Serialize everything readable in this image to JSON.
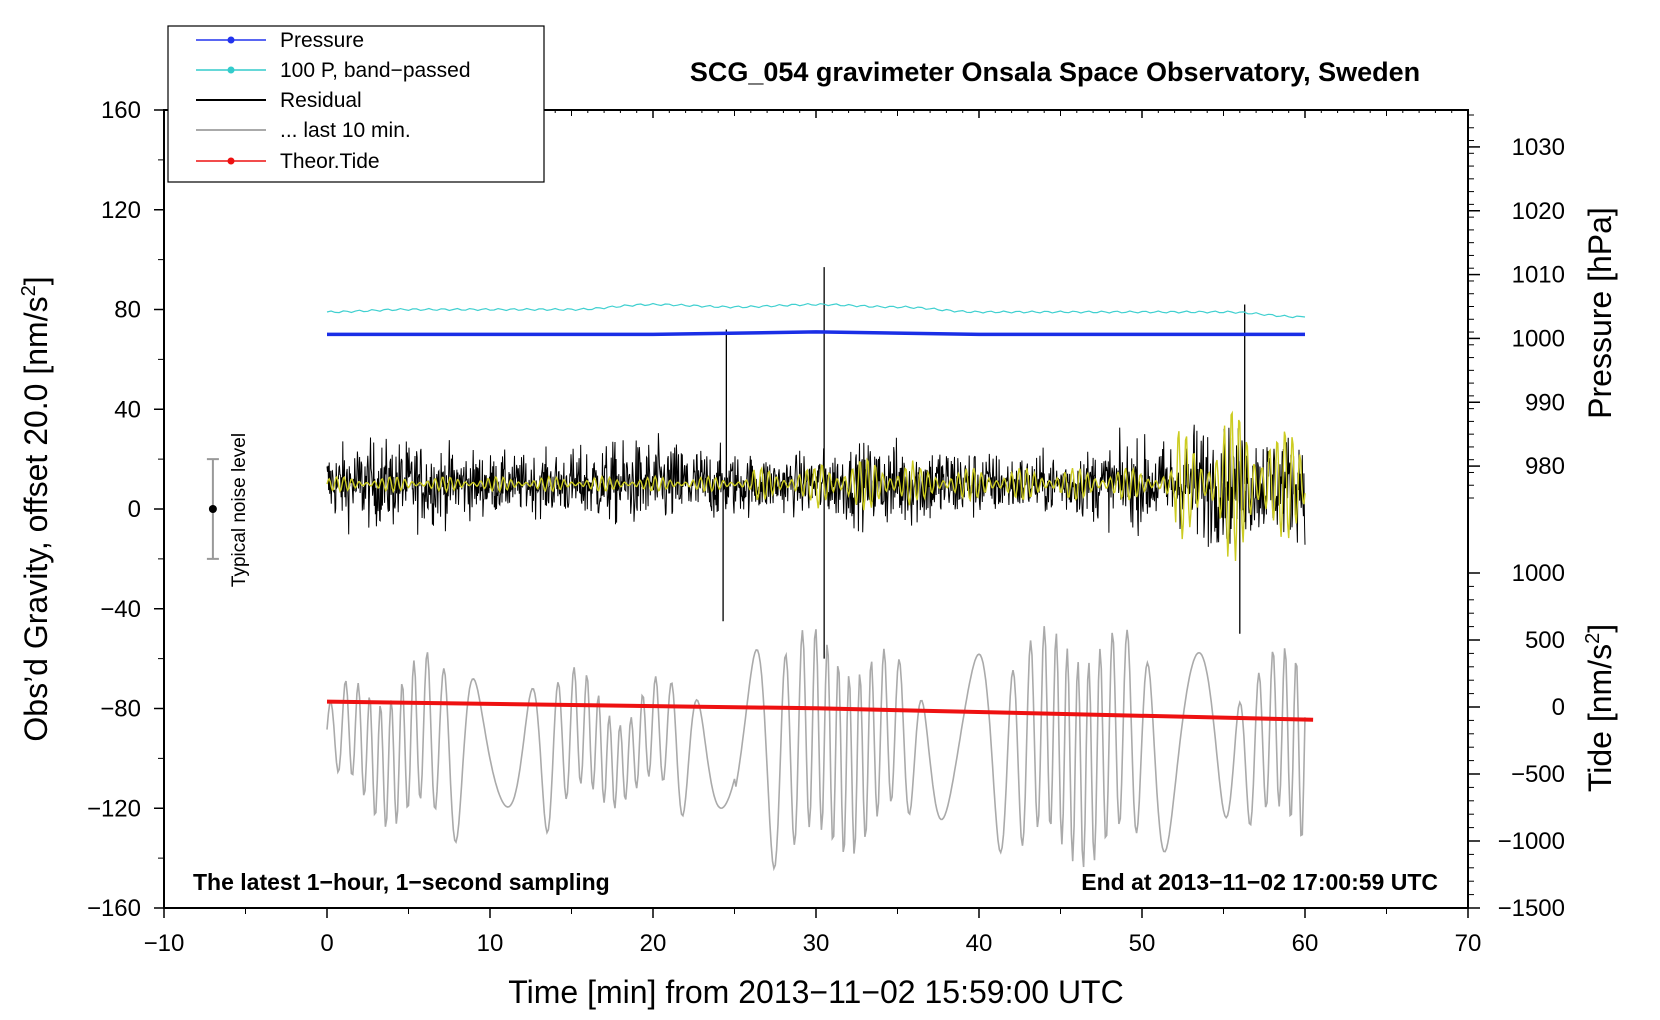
{
  "chart_data": {
    "type": "line",
    "title": "SCG_054 gravimeter Onsala Space Observatory, Sweden",
    "xlabel": "Time [min] from 2013−11−02 15:59:00 UTC",
    "ylabel": "Obs’d Gravity, offset 20.0 [nm/s²]",
    "ylabel_parts": {
      "main": "Obs’d Gravity, offset 20.0 [nm/s",
      "sup": "2",
      "tail": "]"
    },
    "xlim": [
      -10,
      70
    ],
    "ylim": [
      -160,
      160
    ],
    "x_ticks": [
      -10,
      0,
      10,
      20,
      30,
      40,
      50,
      60,
      70
    ],
    "x_tick_labels": [
      "−10",
      "0",
      "10",
      "20",
      "30",
      "40",
      "50",
      "60",
      "70"
    ],
    "y_ticks": [
      -160,
      -120,
      -80,
      -40,
      0,
      40,
      80,
      120,
      160
    ],
    "y_tick_labels": [
      "−160",
      "−120",
      "−80",
      "−40",
      "0",
      "40",
      "80",
      "120",
      "160"
    ],
    "pressure_axis": {
      "label": "Pressure [hPa]",
      "ticks": [
        980,
        990,
        1000,
        1010,
        1020,
        1030
      ],
      "tick_labels": [
        "980",
        "990",
        "1000",
        "1010",
        "1020",
        "1030"
      ],
      "range": [
        975,
        1035
      ]
    },
    "tide_axis": {
      "label_parts": {
        "main": "Tide [nm/s",
        "sup": "2",
        "tail": "]"
      },
      "ticks": [
        -1500,
        -1000,
        -500,
        0,
        500,
        1000
      ],
      "tick_labels": [
        "−1500",
        "−1000",
        "−500",
        "0",
        "500",
        "1000"
      ],
      "range": [
        -1500,
        1000
      ]
    },
    "legend": {
      "position": "top-left",
      "entries": [
        {
          "label": "Pressure",
          "color": "#2233ee",
          "marker": true
        },
        {
          "label": "100 P, band−passed",
          "color": "#33cccc",
          "marker": true
        },
        {
          "label": "Residual",
          "color": "#000000",
          "marker": false
        },
        {
          "label": "... last 10 min.",
          "color": "#aaaaaa",
          "marker": false
        },
        {
          "label": "Theor.Tide",
          "color": "#ee1111",
          "marker": true
        }
      ]
    },
    "series": [
      {
        "name": "Pressure",
        "color": "#1a2ee6",
        "axis": "left",
        "x": [
          0,
          10,
          20,
          30,
          40,
          50,
          60
        ],
        "y": [
          70,
          70,
          70,
          71,
          70,
          70,
          70
        ]
      },
      {
        "name": "100 P, band−passed",
        "color": "#40d0d0",
        "axis": "left",
        "x": [
          0,
          5,
          10,
          15,
          20,
          25,
          30,
          35,
          40,
          45,
          50,
          55,
          60
        ],
        "y": [
          79,
          80,
          80,
          80,
          82,
          81,
          82,
          81,
          79,
          79,
          79,
          79,
          77
        ]
      },
      {
        "name": "Residual",
        "color": "#000000",
        "axis": "left",
        "x_range": [
          0,
          60
        ],
        "center": 10,
        "amplitude": 20,
        "spikes": [
          {
            "x": 30.5,
            "y": 97
          },
          {
            "x": 30.5,
            "y": -60
          },
          {
            "x": 24.5,
            "y": 72
          },
          {
            "x": 24.3,
            "y": -45
          },
          {
            "x": 56.3,
            "y": 82
          },
          {
            "x": 56.0,
            "y": -50
          }
        ]
      },
      {
        "name": "... last 10 min.",
        "color": "#aaaaaa",
        "axis": "left",
        "x_range": [
          0,
          60
        ],
        "center": -95,
        "amplitude": 25
      },
      {
        "name": "Band-passed residual",
        "color": "#cccc22",
        "axis": "left",
        "x_range": [
          0,
          60
        ],
        "center": 10,
        "amplitude": 3
      },
      {
        "name": "Theor.Tide",
        "color": "#ee1111",
        "axis": "tide",
        "x": [
          0,
          30,
          60.5
        ],
        "y": [
          40,
          -10,
          -95
        ]
      }
    ],
    "noise_level": {
      "label": "Typical noise level",
      "x": -7,
      "center": 0,
      "low": -20,
      "high": 20
    },
    "annotations": {
      "bottom_left": "The latest 1−hour, 1−second sampling",
      "bottom_right": "End at 2013−11−02 17:00:59 UTC"
    }
  }
}
